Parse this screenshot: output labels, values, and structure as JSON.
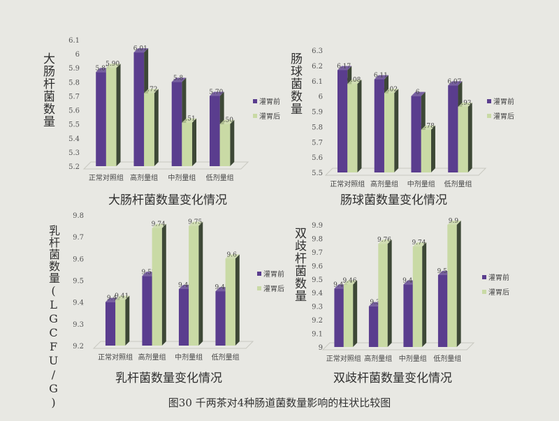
{
  "caption": "图30 千两茶对4种肠道菌数量影响的柱状比较图",
  "colors": {
    "before": "#5a3d8e",
    "after": "#c9daa5",
    "side": "#3d4836"
  },
  "chart_data": [
    {
      "type": "bar",
      "title": "大肠杆菌数量变化情况",
      "ylabel": "大肠杆菌数量",
      "categories": [
        "正常对照组",
        "高剂量组",
        "中剂量组",
        "低剂量组"
      ],
      "ylim": [
        5.2,
        6.1
      ],
      "yticks": [
        "5.2",
        "5.3",
        "5.4",
        "5.5",
        "5.6",
        "5.7",
        "5.8",
        "5.9",
        "6",
        "6.1"
      ],
      "series": [
        {
          "name": "灌胃前",
          "values": [
            5.87,
            6.01,
            5.8,
            5.7
          ],
          "labels": [
            "5.87",
            "6.01",
            "5.8",
            "5.70"
          ]
        },
        {
          "name": "灌胃后",
          "values": [
            5.9,
            5.72,
            5.51,
            5.5
          ],
          "labels": [
            "5.90",
            "5.72",
            "5.51",
            "5.50"
          ]
        }
      ],
      "legend": "right"
    },
    {
      "type": "bar",
      "title": "肠球菌数量变化情况",
      "ylabel": "肠球菌数量",
      "categories": [
        "正常对照组",
        "高剂量组",
        "中剂量组",
        "低剂量组"
      ],
      "ylim": [
        5.5,
        6.3
      ],
      "yticks": [
        "5.5",
        "5.6",
        "5.7",
        "5.8",
        "5.9",
        "6",
        "6.1",
        "6.2",
        "6.3"
      ],
      "series": [
        {
          "name": "灌胃前",
          "values": [
            6.17,
            6.11,
            6.0,
            6.07
          ],
          "labels": [
            "6.17",
            "6.11",
            "6",
            "6.07"
          ]
        },
        {
          "name": "灌胃后",
          "values": [
            6.08,
            6.02,
            5.78,
            5.93
          ],
          "labels": [
            "6.08",
            "6.02",
            "5.78",
            "5.93"
          ]
        }
      ],
      "legend": "right"
    },
    {
      "type": "bar",
      "title": "乳杆菌数量变化情况",
      "ylabel": "乳杆菌数量(LGCFU/G)",
      "categories": [
        "正常对照组",
        "高剂量组",
        "中剂量组",
        "低剂量组"
      ],
      "ylim": [
        9.2,
        9.8
      ],
      "yticks": [
        "9.2",
        "9.3",
        "9.4",
        "9.5",
        "9.6",
        "9.7",
        "9.8"
      ],
      "series": [
        {
          "name": "灌胃前",
          "values": [
            9.4,
            9.52,
            9.46,
            9.45
          ],
          "labels": [
            "9.4",
            "9.52",
            "9.46",
            "9.45"
          ]
        },
        {
          "name": "灌胃后",
          "values": [
            9.41,
            9.74,
            9.75,
            9.6
          ],
          "labels": [
            "9.41",
            "9.74",
            "9.75",
            "9.6"
          ]
        }
      ],
      "legend": "right"
    },
    {
      "type": "bar",
      "title": "双歧杆菌数量变化情况",
      "ylabel": "双歧杆菌数量",
      "categories": [
        "正常对照组",
        "高剂量组",
        "中剂量组",
        "低剂量组"
      ],
      "ylim": [
        9,
        9.9
      ],
      "yticks": [
        "9",
        "9.1",
        "9.2",
        "9.3",
        "9.4",
        "9.5",
        "9.6",
        "9.7",
        "9.8",
        "9.9"
      ],
      "series": [
        {
          "name": "灌胃前",
          "values": [
            9.43,
            9.3,
            9.46,
            9.53
          ],
          "labels": [
            "9.43",
            "9.3",
            "9.46",
            "9.53"
          ]
        },
        {
          "name": "灌胃后",
          "values": [
            9.46,
            9.76,
            9.74,
            9.9
          ],
          "labels": [
            "9.46",
            "9.76",
            "9.74",
            "9.9"
          ]
        }
      ],
      "legend": "right"
    }
  ]
}
